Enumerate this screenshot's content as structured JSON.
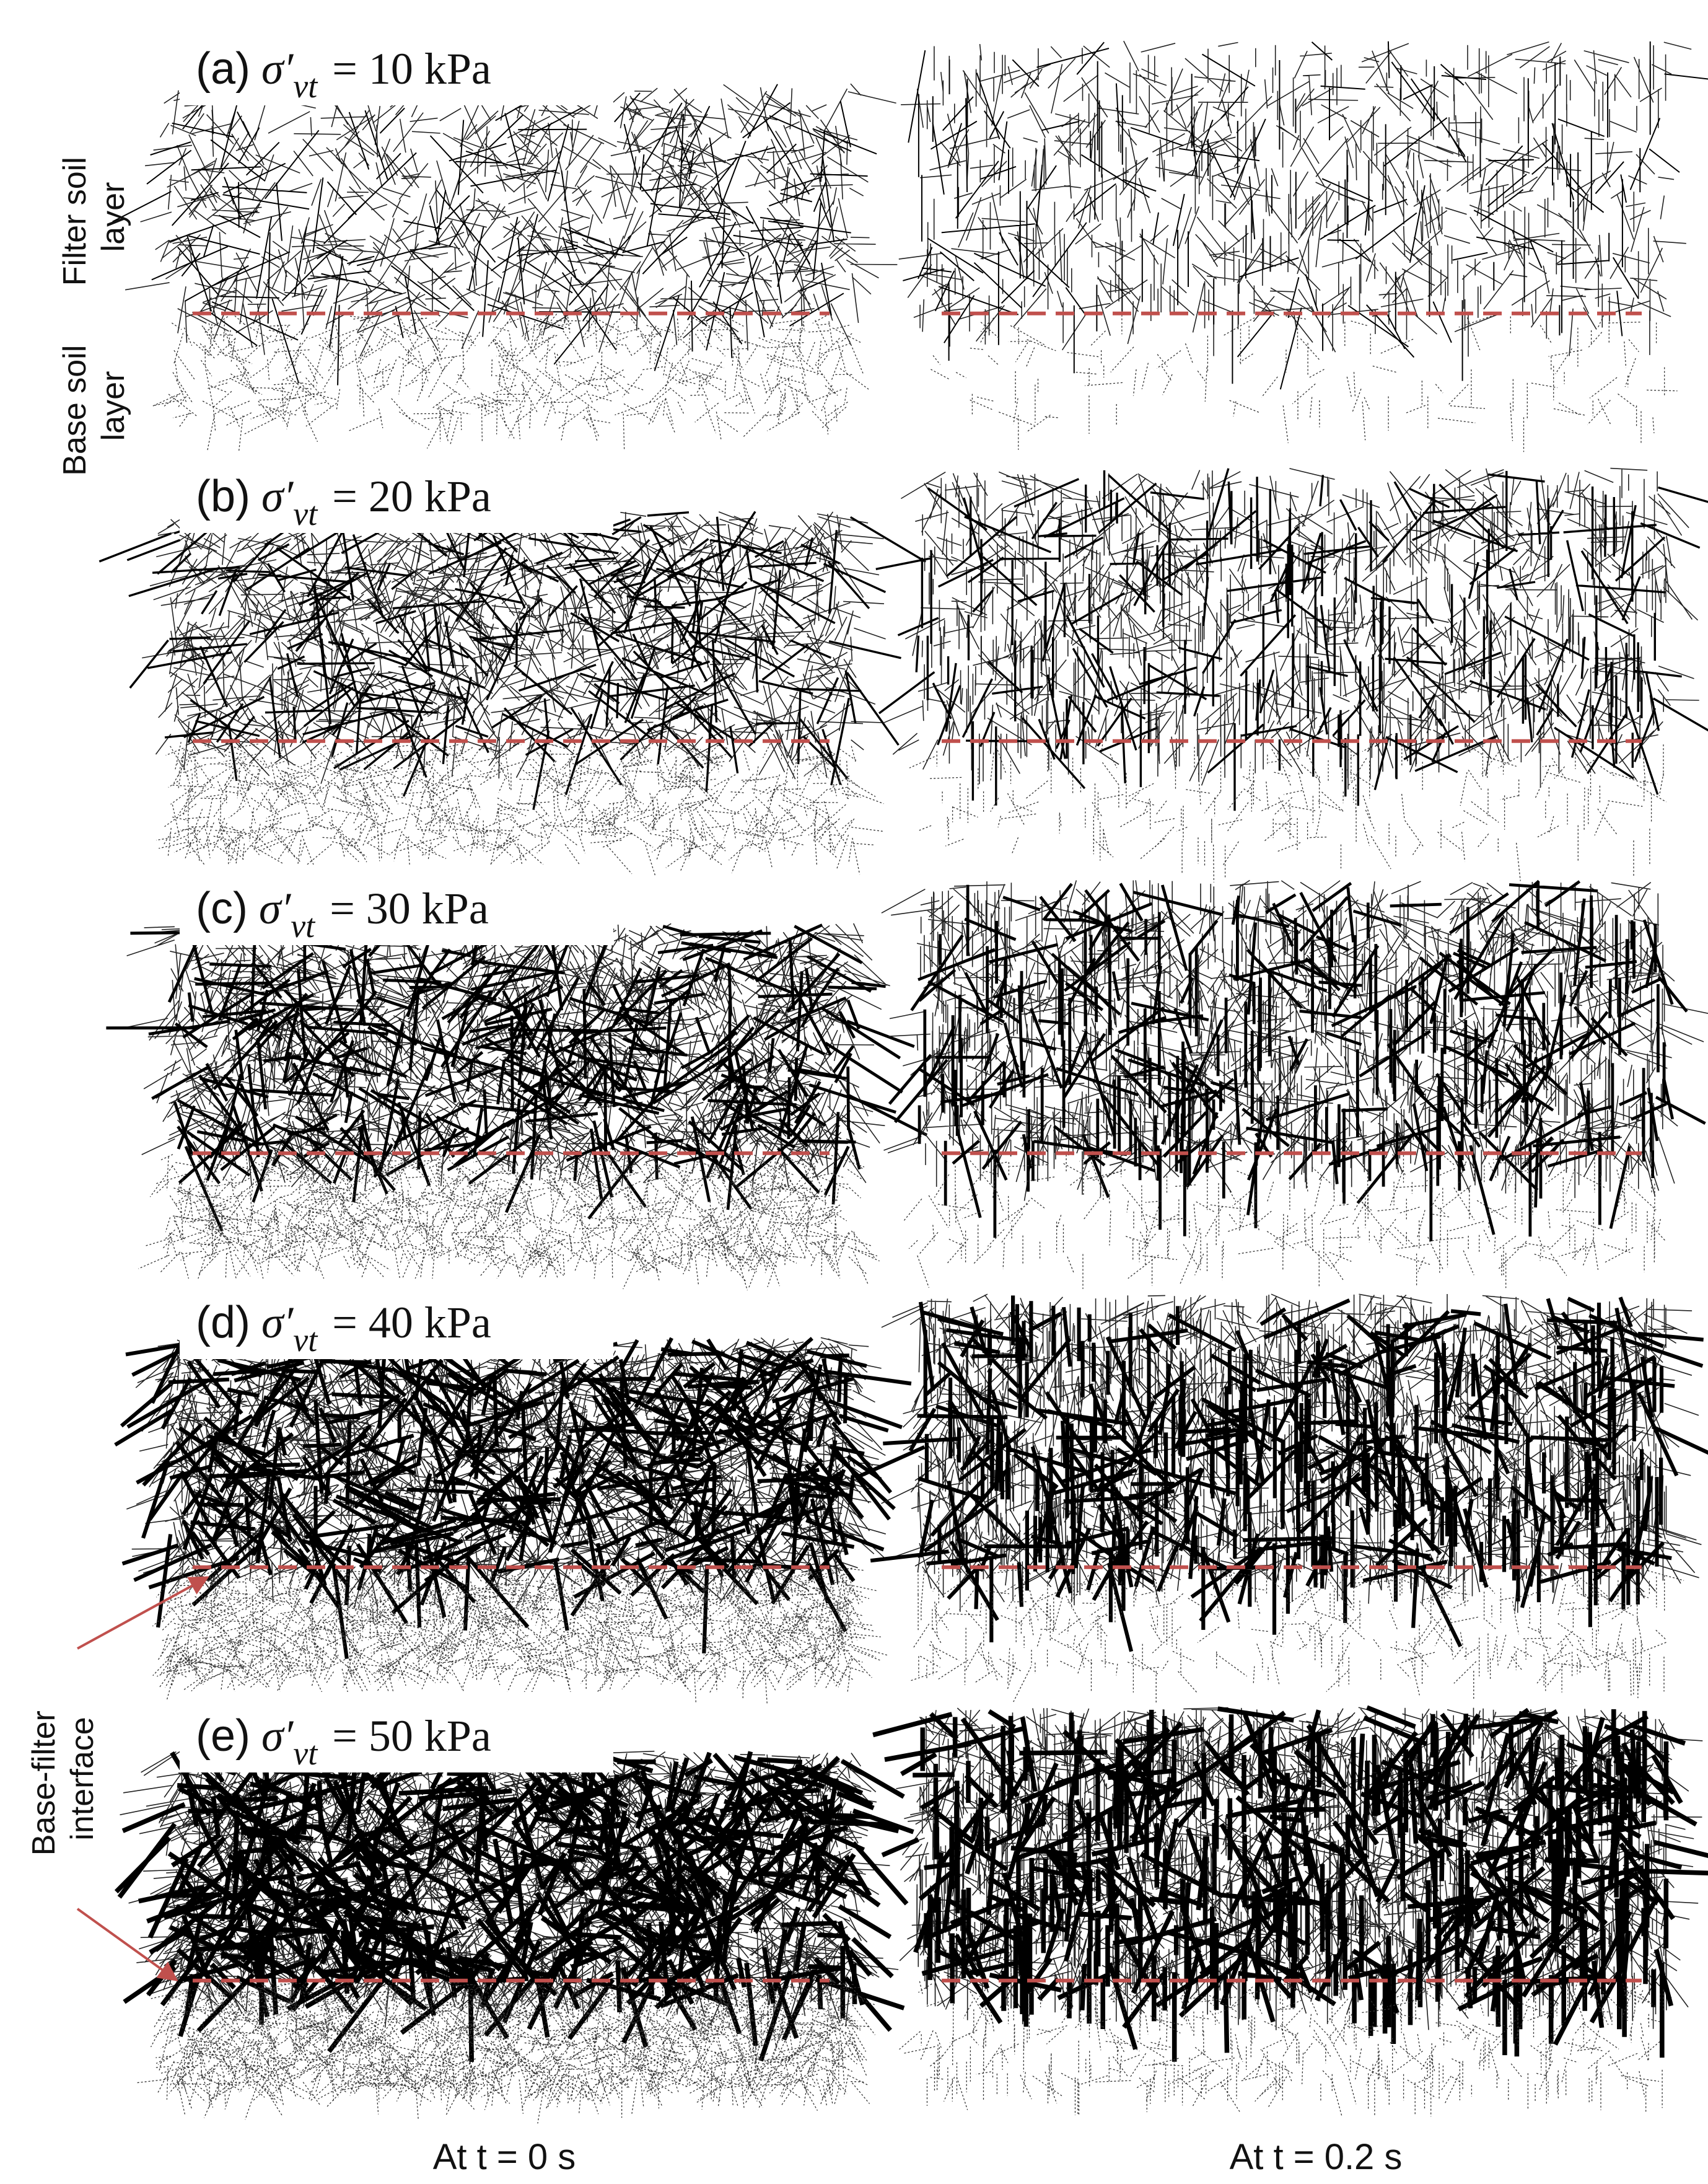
{
  "side_labels": {
    "filter": [
      "Filter soil",
      "layer"
    ],
    "base": [
      "Base soil",
      "layer"
    ],
    "interface": [
      "Base-filter",
      "interface"
    ]
  },
  "panels": [
    {
      "label": "(a)",
      "symbol": "σ′",
      "subscript": "vt",
      "value": "= 10 kPa"
    },
    {
      "label": "(b)",
      "symbol": "σ′",
      "subscript": "vt",
      "value": "= 20 kPa"
    },
    {
      "label": "(c)",
      "symbol": "σ′",
      "subscript": "vt",
      "value": "= 30 kPa"
    },
    {
      "label": "(d)",
      "symbol": "σ′",
      "subscript": "vt",
      "value": "= 40 kPa"
    },
    {
      "label": "(e)",
      "symbol": "σ′",
      "subscript": "vt",
      "value": "= 50 kPa"
    }
  ],
  "columns": [
    "At t = 0 s",
    "At t = 0.2 s"
  ]
}
